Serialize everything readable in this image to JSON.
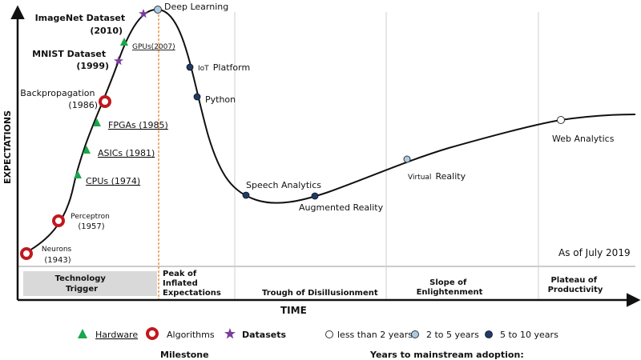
{
  "axes": {
    "x_label": "TIME",
    "y_label": "EXPECTATIONS"
  },
  "date_note": "As of July 2019",
  "phases": {
    "trigger": [
      "Technology",
      "Trigger"
    ],
    "peak": [
      "Peak of",
      "Inflated",
      "Expectations"
    ],
    "trough": [
      "Trough of Disillusionment"
    ],
    "slope": [
      "Slope of",
      "Enlightenment"
    ],
    "plateau": [
      "Plateau of",
      "Productivity"
    ]
  },
  "milestones": {
    "neurons": {
      "name": "Neurons",
      "year": "(1943)",
      "category": "algorithm"
    },
    "perceptron": {
      "name": "Perceptron",
      "year": "(1957)",
      "category": "algorithm"
    },
    "cpus": {
      "label": "CPUs (1974)",
      "category": "hardware"
    },
    "asics": {
      "label": "ASICs (1981)",
      "category": "hardware"
    },
    "fpgas": {
      "label": "FPGAs (1985)",
      "category": "hardware"
    },
    "backprop": {
      "name": "Backpropagation",
      "year": "(1986)",
      "category": "algorithm"
    },
    "mnist": {
      "name": "MNIST Dataset",
      "year": "(1999)",
      "category": "dataset"
    },
    "gpus": {
      "label": "GPUs(2007)",
      "category": "hardware"
    },
    "imagenet": {
      "name": "ImageNet Dataset",
      "year": "(2010)",
      "category": "dataset"
    }
  },
  "technologies": {
    "deep_learning": {
      "label": "Deep Learning",
      "adoption": "2 to 5 years"
    },
    "iot": {
      "prefix": "IoT",
      "label": "Platform",
      "adoption": "5 to 10 years"
    },
    "python": {
      "label": "Python",
      "adoption": "5 to 10 years"
    },
    "speech": {
      "label": "Speech Analytics",
      "adoption": "5 to 10 years"
    },
    "ar": {
      "label": "Augmented Reality",
      "adoption": "5 to 10 years"
    },
    "vr": {
      "prefix": "Virtual",
      "label": "Reality",
      "adoption": "2 to 5 years"
    },
    "web": {
      "label": "Web Analytics",
      "adoption": "less than 2 years"
    }
  },
  "legend": {
    "hardware": "Hardware",
    "algorithms": "Algorithms",
    "datasets": "Datasets",
    "milestone_title": "Milestone",
    "lt2": "less than 2 years",
    "y2to5": "2 to 5 years",
    "y5to10": "5 to 10 years",
    "adoption_title": "Years to mainstream adoption:"
  },
  "colors": {
    "hardware": "#1aa64a",
    "algorithm": "#c0191e",
    "dataset": "#7a3c9e",
    "lt2": "#ffffff",
    "y2to5": "#a9cbe6",
    "y5to10": "#1f3a6b",
    "peak_line": "#e07b1a",
    "trigger_box": "#d9d9d9"
  }
}
